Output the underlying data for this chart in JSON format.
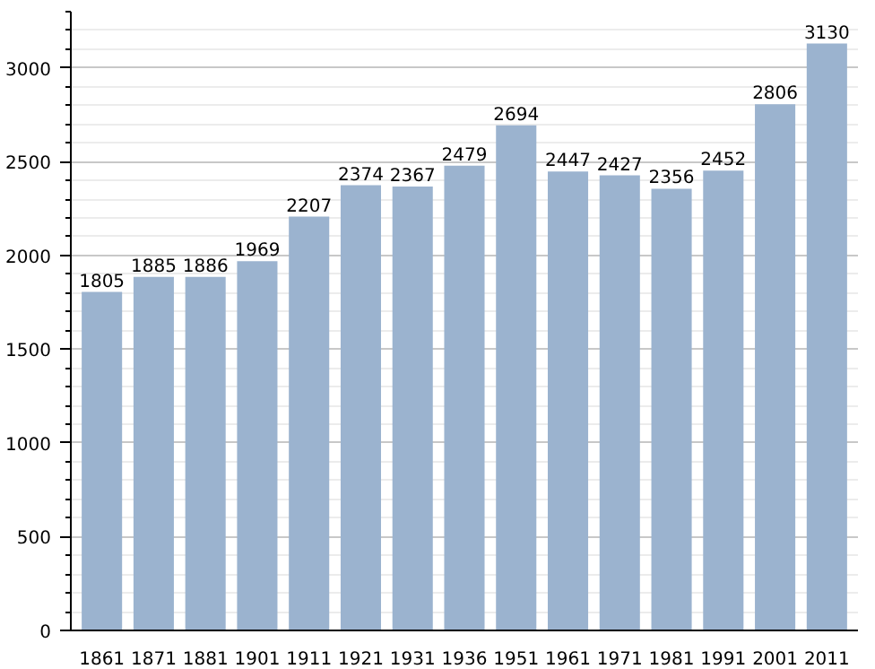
{
  "chart_data": {
    "type": "bar",
    "categories": [
      "1861",
      "1871",
      "1881",
      "1901",
      "1911",
      "1921",
      "1931",
      "1936",
      "1951",
      "1961",
      "1971",
      "1981",
      "1991",
      "2001",
      "2011"
    ],
    "values": [
      1805,
      1885,
      1886,
      1969,
      2207,
      2374,
      2367,
      2479,
      2694,
      2447,
      2427,
      2356,
      2452,
      2806,
      3130
    ],
    "color": "#9bb3cf",
    "ylim": [
      0,
      3300
    ],
    "yticks": [
      0,
      500,
      1000,
      1500,
      2000,
      2500,
      3000
    ],
    "grid": "y",
    "data_labels": true
  }
}
